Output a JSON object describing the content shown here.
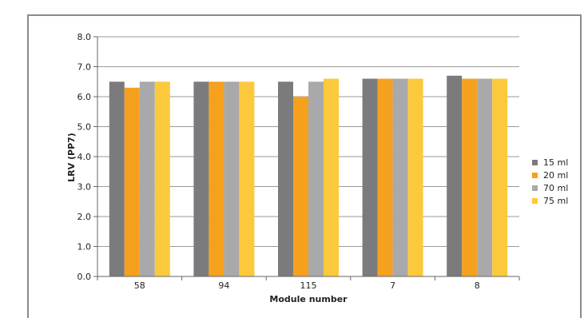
{
  "chart_data": {
    "type": "bar",
    "title": "",
    "xlabel": "Module number",
    "ylabel": "LRV (PP7)",
    "categories": [
      "58",
      "94",
      "115",
      "7",
      "8"
    ],
    "ylim": [
      0,
      8
    ],
    "yticks": [
      "0.0",
      "1.0",
      "2.0",
      "3.0",
      "4.0",
      "5.0",
      "6.0",
      "7.0",
      "8.0"
    ],
    "grid": true,
    "legend_position": "right",
    "series": [
      {
        "name": "15 ml",
        "color": "#7b7b7d",
        "values": [
          6.5,
          6.5,
          6.5,
          6.6,
          6.7
        ]
      },
      {
        "name": "20 ml",
        "color": "#f5a11e",
        "values": [
          6.3,
          6.5,
          6.0,
          6.6,
          6.6
        ]
      },
      {
        "name": "70 ml",
        "color": "#a9a9ab",
        "values": [
          6.5,
          6.5,
          6.5,
          6.6,
          6.6
        ]
      },
      {
        "name": "75 ml",
        "color": "#fdc93c",
        "values": [
          6.5,
          6.5,
          6.6,
          6.6,
          6.6
        ]
      }
    ]
  }
}
